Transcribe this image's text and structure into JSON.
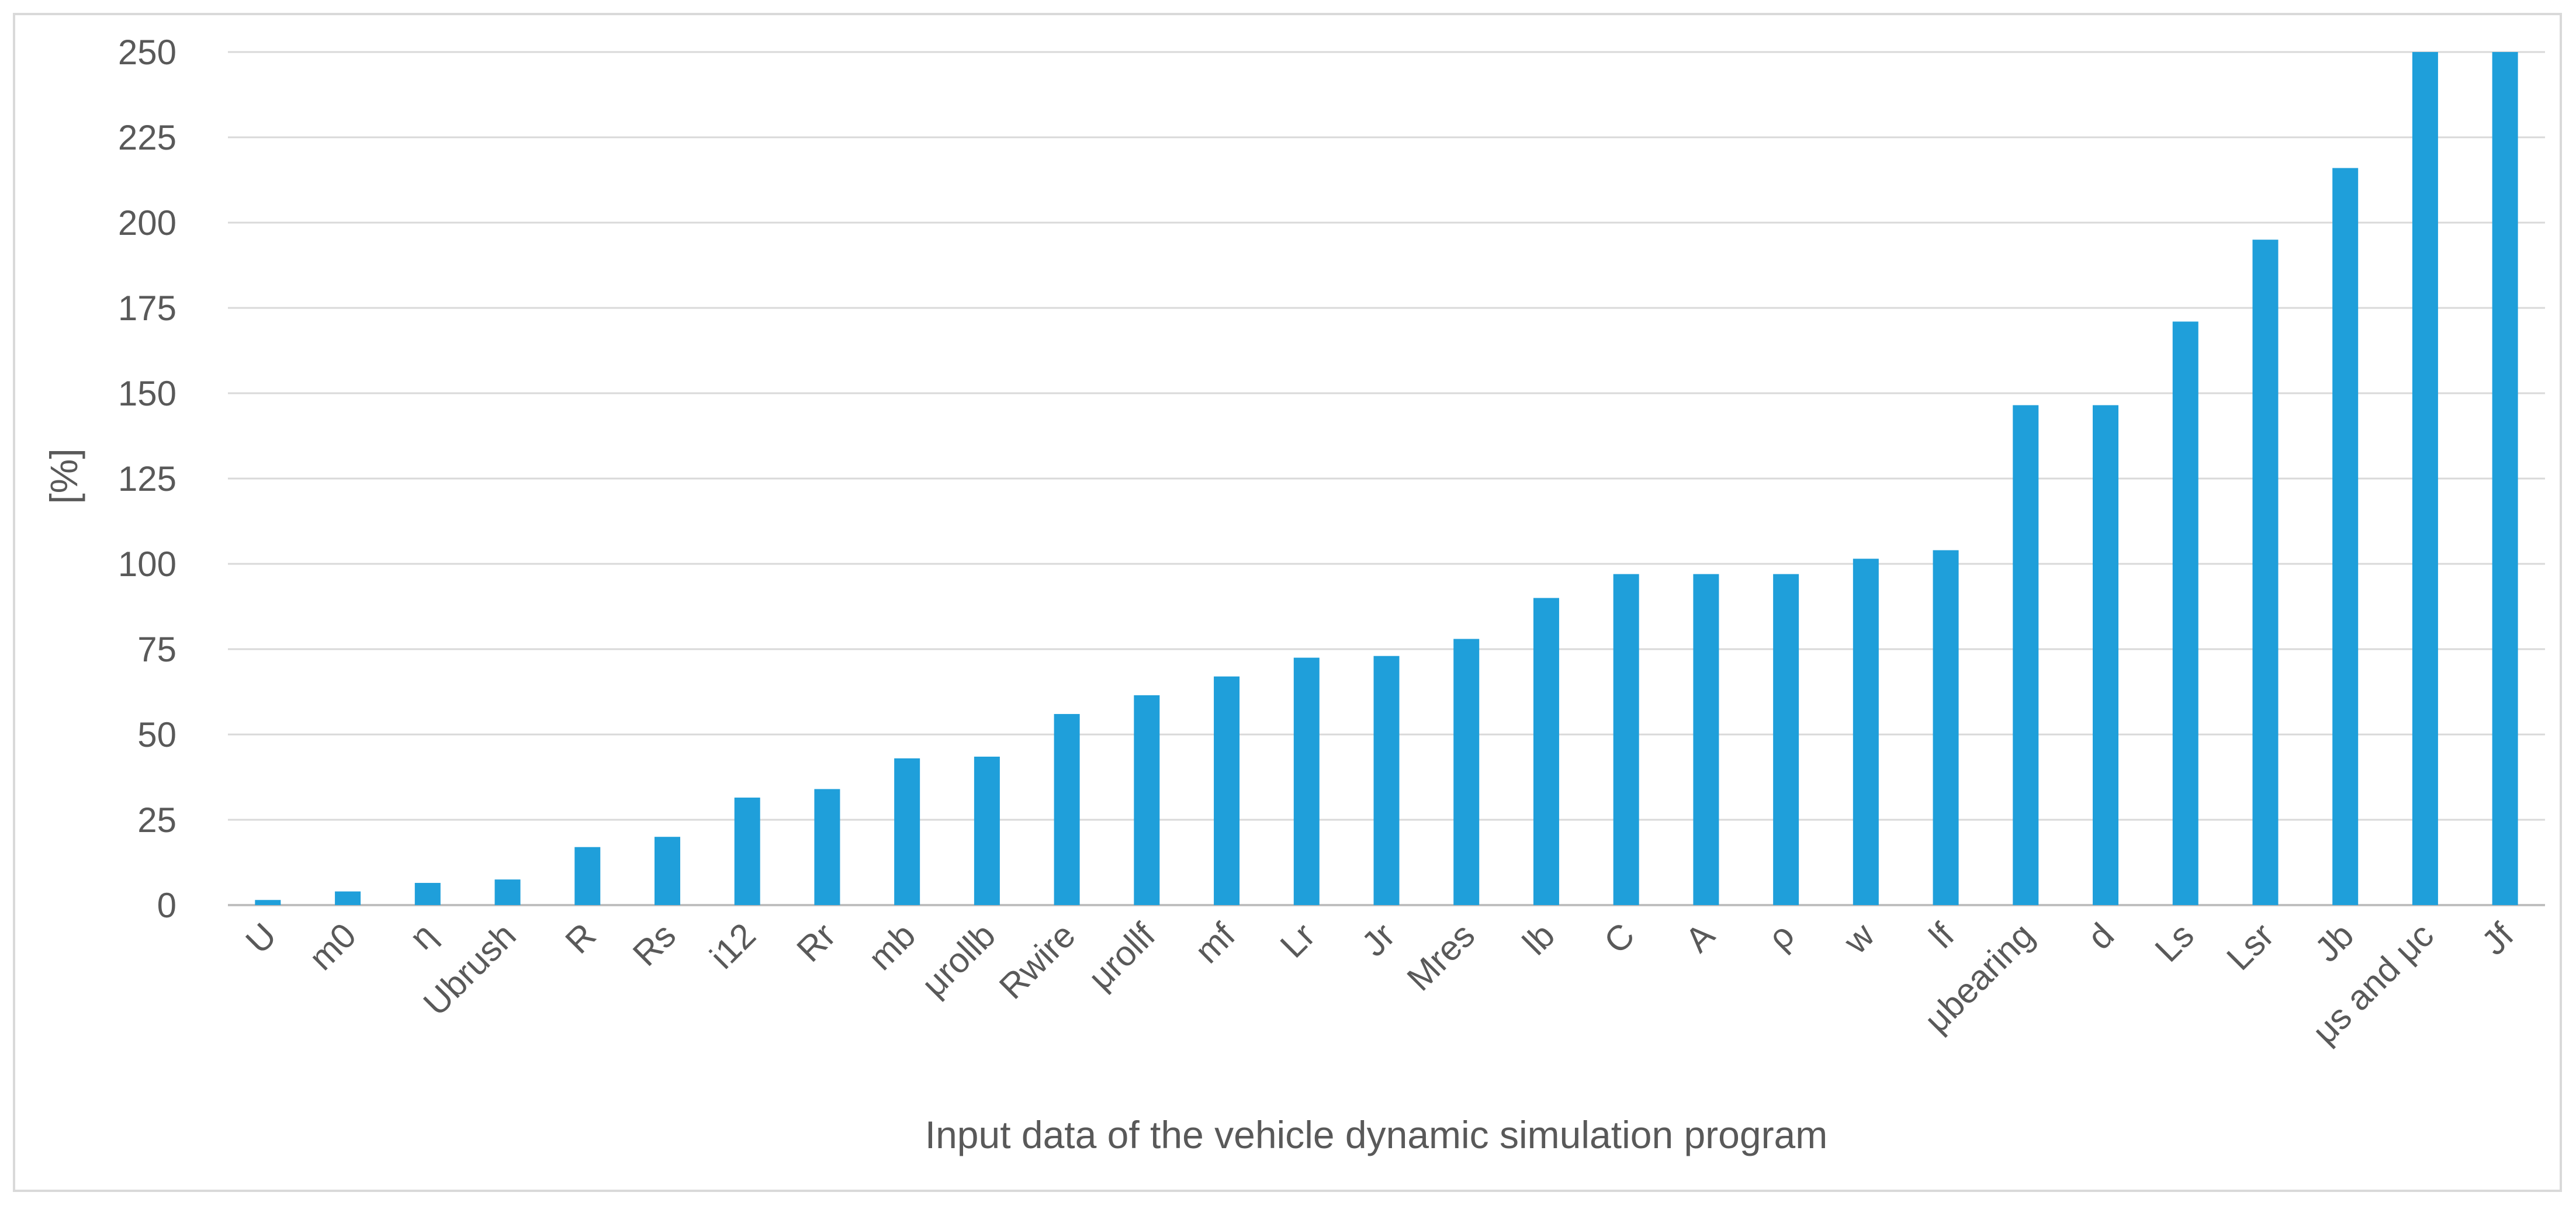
{
  "chart_data": {
    "type": "bar",
    "title": "",
    "xlabel": "Input data of the vehicle dynamic simulation program",
    "ylabel": "[%]",
    "ylim": [
      0,
      250
    ],
    "yticks": [
      0,
      25,
      50,
      75,
      100,
      125,
      150,
      175,
      200,
      225,
      250
    ],
    "grid": true,
    "legend": "none",
    "bar_color": "#1f9fda",
    "categories": [
      "U",
      "m0",
      "η",
      "Ubrush",
      "R",
      "Rs",
      "i12",
      "Rr",
      "mb",
      "μrollb",
      "Rwire",
      "μrollf",
      "mf",
      "Lr",
      "Jr",
      "Mres",
      "lb",
      "C",
      "A",
      "ρ",
      "w",
      "lf",
      "μbearing",
      "d",
      "Ls",
      "Lsr",
      "Jb",
      "μs and μc",
      "Jf"
    ],
    "values": [
      1.5,
      4,
      6.5,
      7.5,
      17,
      20,
      31.5,
      34,
      43,
      43.5,
      56,
      61.5,
      67,
      72.5,
      73,
      78,
      90,
      97,
      97,
      97,
      101.5,
      104,
      146.5,
      146.5,
      171,
      195,
      216,
      250,
      250
    ]
  }
}
